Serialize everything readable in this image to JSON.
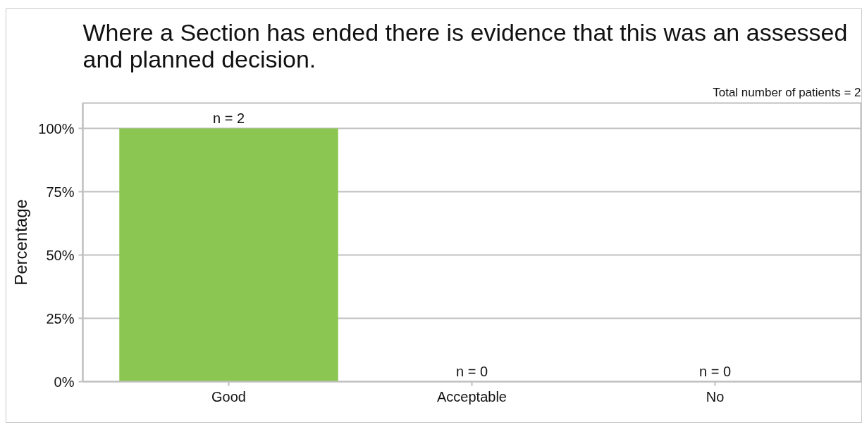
{
  "chart_data": {
    "type": "bar",
    "title": "Where a Section has ended there is evidence that this was an assessed and planned decision.",
    "subtitle": "Total number of patients = 2",
    "ylabel": "Percentage",
    "categories": [
      "Good",
      "Acceptable",
      "No"
    ],
    "values": [
      100,
      0,
      0
    ],
    "color": "#8bc652",
    "annotations": [
      {
        "text": "n = 2",
        "x": "Good",
        "y": 100
      },
      {
        "text": "n = 0",
        "x": "Acceptable",
        "y": 0
      },
      {
        "text": "n = 0",
        "x": "No",
        "y": 0
      }
    ],
    "ylim": [
      0,
      110
    ],
    "yticks": [
      {
        "value": 0,
        "label": "0%"
      },
      {
        "value": 25,
        "label": "25%"
      },
      {
        "value": 50,
        "label": "50%"
      },
      {
        "value": 75,
        "label": "75%"
      },
      {
        "value": 100,
        "label": "100%"
      }
    ],
    "grid": "y"
  }
}
